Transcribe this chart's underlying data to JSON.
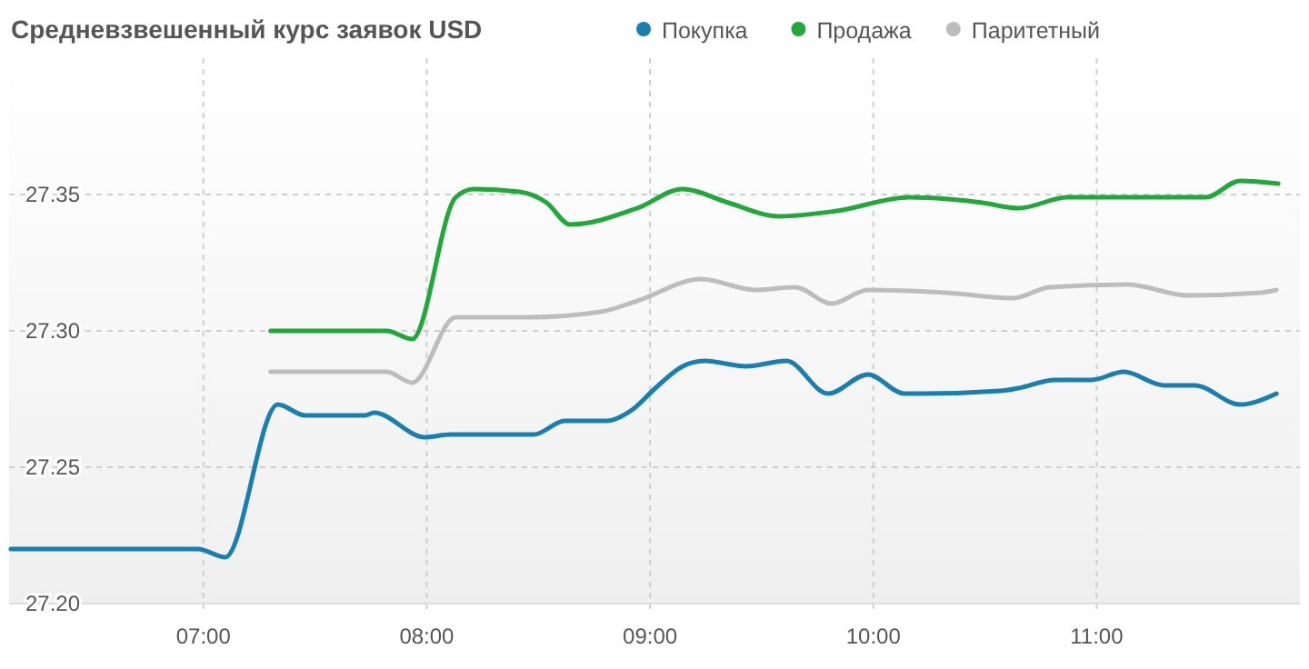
{
  "chart_data": {
    "type": "line",
    "title": "Средневзвешенный курс заявок USD",
    "series": [
      {
        "name": "Покупка",
        "color": "#1a7fb0",
        "x": [
          6.138,
          6.976,
          7.098,
          7.333,
          7.455,
          7.724,
          7.764,
          7.992,
          8.106,
          8.48,
          8.618,
          8.805,
          8.919,
          9.024,
          9.146,
          9.244,
          9.431,
          9.61,
          9.797,
          9.976,
          10.138,
          10.22,
          10.569,
          10.65,
          10.813,
          10.976,
          11.122,
          11.301,
          11.439,
          11.642,
          11.805
        ],
        "values": [
          27.22,
          27.22,
          27.217,
          27.273,
          27.269,
          27.269,
          27.27,
          27.261,
          27.262,
          27.262,
          27.267,
          27.267,
          27.271,
          27.279,
          27.287,
          27.289,
          27.287,
          27.289,
          27.277,
          27.284,
          27.277,
          27.277,
          27.278,
          27.279,
          27.282,
          27.282,
          27.285,
          27.28,
          27.28,
          27.273,
          27.277
        ]
      },
      {
        "name": "Продажа",
        "color": "#22a83a",
        "x": [
          7.301,
          7.821,
          7.935,
          8.13,
          8.211,
          8.415,
          8.537,
          8.642,
          8.943,
          9.146,
          9.35,
          9.577,
          9.837,
          10.163,
          10.488,
          10.65,
          10.87,
          11.098,
          11.488,
          11.642,
          11.813
        ],
        "values": [
          27.3,
          27.3,
          27.297,
          27.349,
          27.352,
          27.351,
          27.347,
          27.339,
          27.345,
          27.352,
          27.347,
          27.342,
          27.344,
          27.349,
          27.347,
          27.345,
          27.349,
          27.349,
          27.349,
          27.355,
          27.354
        ]
      },
      {
        "name": "Паритетный",
        "color": "#bdbdbd",
        "x": [
          7.301,
          7.821,
          7.935,
          8.13,
          8.455,
          8.78,
          8.943,
          9.228,
          9.472,
          9.65,
          9.813,
          9.976,
          10.325,
          10.626,
          10.789,
          11.138,
          11.407,
          11.732,
          11.805
        ],
        "values": [
          27.285,
          27.285,
          27.281,
          27.305,
          27.305,
          27.307,
          27.311,
          27.319,
          27.315,
          27.316,
          27.31,
          27.315,
          27.314,
          27.312,
          27.316,
          27.317,
          27.313,
          27.314,
          27.315
        ]
      }
    ],
    "xlim": [
      6.13,
      11.91
    ],
    "xticks": [
      {
        "value": 7,
        "label": "07:00"
      },
      {
        "value": 8,
        "label": "08:00"
      },
      {
        "value": 9,
        "label": "09:00"
      },
      {
        "value": 10,
        "label": "10:00"
      },
      {
        "value": 11,
        "label": "11:00"
      }
    ],
    "ylim": [
      27.2,
      27.4
    ],
    "yticks": [
      {
        "value": 27.2,
        "label": "27.20"
      },
      {
        "value": 27.25,
        "label": "27.25"
      },
      {
        "value": 27.3,
        "label": "27.30"
      },
      {
        "value": 27.35,
        "label": "27.35"
      }
    ],
    "grid": true,
    "legend": "top",
    "marker": "none",
    "line_style": "solid"
  }
}
